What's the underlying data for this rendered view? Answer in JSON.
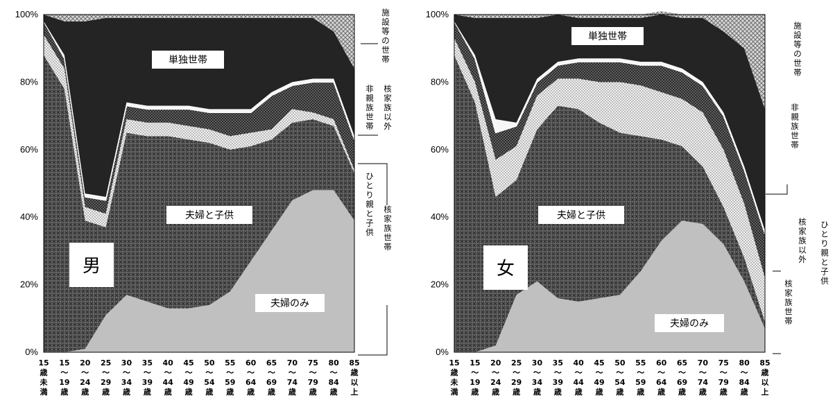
{
  "chart_data": [
    {
      "type": "area",
      "sex_label": "男",
      "categories": [
        [
          "15",
          "歳",
          "未",
          "満"
        ],
        [
          "15",
          "〜",
          "19",
          "歳"
        ],
        [
          "20",
          "〜",
          "24",
          "歳"
        ],
        [
          "25",
          "〜",
          "29",
          "歳"
        ],
        [
          "30",
          "〜",
          "34",
          "歳"
        ],
        [
          "35",
          "〜",
          "39",
          "歳"
        ],
        [
          "40",
          "〜",
          "44",
          "歳"
        ],
        [
          "45",
          "〜",
          "49",
          "歳"
        ],
        [
          "50",
          "〜",
          "54",
          "歳"
        ],
        [
          "55",
          "〜",
          "59",
          "歳"
        ],
        [
          "60",
          "〜",
          "64",
          "歳"
        ],
        [
          "65",
          "〜",
          "69",
          "歳"
        ],
        [
          "70",
          "〜",
          "74",
          "歳"
        ],
        [
          "75",
          "〜",
          "79",
          "歳"
        ],
        [
          "80",
          "〜",
          "84",
          "歳"
        ],
        [
          "85",
          "歳",
          "以",
          "上"
        ]
      ],
      "ylim": [
        0,
        100
      ],
      "yticks": [
        "0%",
        "20%",
        "40%",
        "60%",
        "80%",
        "100%"
      ],
      "series": [
        {
          "name": "夫婦のみ",
          "values": [
            0,
            0,
            1,
            11,
            17,
            15,
            13,
            13,
            14,
            18,
            27,
            36,
            45,
            48,
            48,
            39
          ]
        },
        {
          "name": "夫婦と子供",
          "values": [
            88,
            78,
            38,
            26,
            48,
            49,
            51,
            50,
            48,
            42,
            34,
            27,
            23,
            21,
            19,
            14
          ]
        },
        {
          "name": "ひとり親と子供",
          "values": [
            6,
            6,
            4,
            4,
            4,
            4,
            4,
            4,
            4,
            4,
            4,
            3,
            4,
            2,
            2,
            1
          ]
        },
        {
          "name": "核家族以外",
          "values": [
            4,
            3,
            3,
            4,
            4,
            4,
            4,
            5,
            5,
            7,
            6,
            10,
            7,
            9,
            11,
            9
          ]
        },
        {
          "name": "非親族世帯",
          "values": [
            0,
            1,
            1,
            1,
            1,
            1,
            1,
            1,
            1,
            1,
            1,
            1,
            1,
            1,
            1,
            1
          ]
        },
        {
          "name": "単独世帯",
          "values": [
            2,
            10,
            51,
            53,
            25,
            26,
            26,
            26,
            27,
            27,
            27,
            22,
            19,
            18,
            14,
            20
          ]
        },
        {
          "name": "施設等の世帯",
          "values": [
            0,
            2,
            2,
            1,
            1,
            1,
            1,
            1,
            1,
            1,
            1,
            1,
            1,
            1,
            5,
            16
          ]
        }
      ],
      "annotations": {
        "single": "単独世帯",
        "facility": "施設等の世帯",
        "nonrel": "非親族世帯",
        "otherkin": "核家族以外",
        "single_parent": "ひとり親と子供",
        "nuclear": "核家族世帯",
        "couple_children": "夫婦と子供",
        "couple_only": "夫婦のみ"
      }
    },
    {
      "type": "area",
      "sex_label": "女",
      "categories": [
        [
          "15",
          "歳",
          "未",
          "満"
        ],
        [
          "15",
          "〜",
          "19",
          "歳"
        ],
        [
          "20",
          "〜",
          "24",
          "歳"
        ],
        [
          "25",
          "〜",
          "29",
          "歳"
        ],
        [
          "30",
          "〜",
          "34",
          "歳"
        ],
        [
          "35",
          "〜",
          "39",
          "歳"
        ],
        [
          "40",
          "〜",
          "44",
          "歳"
        ],
        [
          "45",
          "〜",
          "49",
          "歳"
        ],
        [
          "50",
          "〜",
          "54",
          "歳"
        ],
        [
          "55",
          "〜",
          "59",
          "歳"
        ],
        [
          "60",
          "〜",
          "64",
          "歳"
        ],
        [
          "65",
          "〜",
          "69",
          "歳"
        ],
        [
          "70",
          "〜",
          "74",
          "歳"
        ],
        [
          "75",
          "〜",
          "79",
          "歳"
        ],
        [
          "80",
          "〜",
          "84",
          "歳"
        ],
        [
          "85",
          "歳",
          "以",
          "上"
        ]
      ],
      "ylim": [
        0,
        100
      ],
      "yticks": [
        "0%",
        "20%",
        "40%",
        "60%",
        "80%",
        "100%"
      ],
      "series": [
        {
          "name": "夫婦のみ",
          "values": [
            0,
            0,
            2,
            17,
            21,
            16,
            15,
            16,
            17,
            24,
            33,
            39,
            38,
            32,
            21,
            7
          ]
        },
        {
          "name": "夫婦と子供",
          "values": [
            88,
            74,
            44,
            34,
            45,
            57,
            57,
            52,
            48,
            40,
            30,
            22,
            17,
            11,
            7,
            2
          ]
        },
        {
          "name": "ひとり親と子供",
          "values": [
            5,
            6,
            11,
            10,
            10,
            8,
            9,
            12,
            15,
            15,
            14,
            14,
            16,
            17,
            16,
            13
          ]
        },
        {
          "name": "核家族以外",
          "values": [
            5,
            7,
            8,
            6,
            4,
            4,
            5,
            6,
            6,
            6,
            8,
            8,
            8,
            10,
            10,
            13
          ]
        },
        {
          "name": "非親族世帯",
          "values": [
            0,
            1,
            4,
            1,
            1,
            1,
            1,
            1,
            1,
            1,
            1,
            1,
            1,
            1,
            1,
            1
          ]
        },
        {
          "name": "単独世帯",
          "values": [
            2,
            11,
            30,
            31,
            18,
            14,
            12,
            12,
            12,
            13,
            14,
            15,
            19,
            24,
            35,
            36
          ]
        },
        {
          "name": "施設等の世帯",
          "values": [
            0,
            1,
            1,
            1,
            1,
            0,
            1,
            1,
            1,
            1,
            1,
            1,
            1,
            5,
            10,
            28
          ]
        }
      ],
      "annotations": {
        "single": "単独世帯",
        "facility": "施設等の世帯",
        "nonrel": "非親族世帯",
        "otherkin": "核家族以外",
        "single_parent": "ひとり親と子供",
        "nuclear": "核家族世帯",
        "couple_children": "夫婦と子供",
        "couple_only": "夫婦のみ"
      }
    }
  ]
}
